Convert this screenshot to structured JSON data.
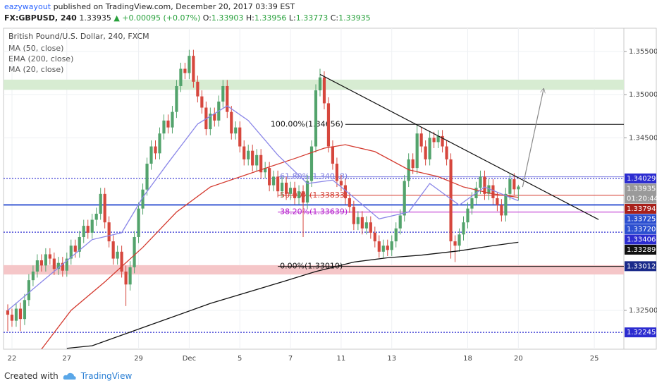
{
  "header": {
    "author": "eazywayout",
    "published": "published on TradingView.com, December 20, 2017 03:39 EST",
    "symbol": "FX:GBPUSD, 240",
    "last": "1.33935",
    "change": "▲ +0.00095 (+0.07%)",
    "ohlc": [
      {
        "key": "O:",
        "value": "1.33903"
      },
      {
        "key": "H:",
        "value": "1.33956"
      },
      {
        "key": "L:",
        "value": "1.33773"
      },
      {
        "key": "C:",
        "value": "1.33935"
      }
    ]
  },
  "footer": {
    "created": "Created with",
    "brand": "TradingView"
  },
  "chart_data": {
    "type": "candlestick",
    "title": "British Pound/U.S. Dollar, 240, FXCM",
    "up_color": "#53a36c",
    "down_color": "#d6473d",
    "xlim": [
      -1,
      146
    ],
    "ylim": [
      1.3205,
      1.3577
    ],
    "xticks": [
      {
        "value": 1,
        "label": "22"
      },
      {
        "value": 14,
        "label": "27"
      },
      {
        "value": 31,
        "label": "29"
      },
      {
        "value": 43,
        "label": "Dec"
      },
      {
        "value": 55,
        "label": "5"
      },
      {
        "value": 67,
        "label": "7"
      },
      {
        "value": 79,
        "label": "11"
      },
      {
        "value": 91,
        "label": "13"
      },
      {
        "value": 109,
        "label": "18"
      },
      {
        "value": 121,
        "label": "20"
      },
      {
        "value": 139,
        "label": "25"
      }
    ],
    "yticks": [
      {
        "value": 1.355,
        "label": "1.35500"
      },
      {
        "value": 1.35,
        "label": "1.35000"
      },
      {
        "value": 1.345,
        "label": "1.34500"
      },
      {
        "value": 1.325,
        "label": "1.32500"
      }
    ],
    "grid": true,
    "open": [
      1.325,
      1.3245,
      1.3238,
      1.3252,
      1.324,
      1.3262,
      1.3285,
      1.3295,
      1.3308,
      1.3302,
      1.3315,
      1.331,
      1.3298,
      1.3305,
      1.3296,
      1.331,
      1.3325,
      1.3318,
      1.3335,
      1.3348,
      1.334,
      1.3355,
      1.3362,
      1.3385,
      1.3352,
      1.333,
      1.331,
      1.3318,
      1.3295,
      1.328,
      1.33,
      1.3335,
      1.3368,
      1.339,
      1.342,
      1.344,
      1.3432,
      1.3455,
      1.347,
      1.3462,
      1.348,
      1.351,
      1.353,
      1.3525,
      1.3545,
      1.3515,
      1.3498,
      1.3485,
      1.346,
      1.3478,
      1.347,
      1.3492,
      1.351,
      1.348,
      1.3455,
      1.3462,
      1.344,
      1.3425,
      1.3435,
      1.3418,
      1.343,
      1.341,
      1.3415,
      1.3395,
      1.3405,
      1.3388,
      1.3398,
      1.3385,
      1.3392,
      1.338,
      1.3388,
      1.3375,
      1.34,
      1.344,
      1.3505,
      1.352,
      1.349,
      1.344,
      1.342,
      1.34,
      1.3395,
      1.338,
      1.337,
      1.335,
      1.3358,
      1.3345,
      1.3352,
      1.334,
      1.333,
      1.3318,
      1.3325,
      1.332,
      1.333,
      1.3345,
      1.336,
      1.34,
      1.3425,
      1.3415,
      1.3455,
      1.344,
      1.3425,
      1.345,
      1.3445,
      1.3452,
      1.344,
      1.3425,
      1.333,
      1.3325,
      1.3338,
      1.3352,
      1.3368,
      1.338,
      1.3392,
      1.3405,
      1.3385,
      1.3395,
      1.338,
      1.3372,
      1.336,
      1.3385,
      1.3402,
      1.33903
    ],
    "high": [
      1.3257,
      1.3252,
      1.3259,
      1.3259,
      1.3269,
      1.3292,
      1.3302,
      1.3315,
      1.3315,
      1.3322,
      1.3322,
      1.3317,
      1.3312,
      1.3312,
      1.3317,
      1.3332,
      1.3332,
      1.3342,
      1.3355,
      1.3355,
      1.3362,
      1.3369,
      1.3392,
      1.3392,
      1.3359,
      1.3337,
      1.3325,
      1.3325,
      1.3302,
      1.3307,
      1.3342,
      1.3375,
      1.3397,
      1.3427,
      1.3447,
      1.3447,
      1.3462,
      1.3477,
      1.3477,
      1.3487,
      1.3517,
      1.3537,
      1.3537,
      1.3552,
      1.3552,
      1.3522,
      1.3505,
      1.3492,
      1.3485,
      1.3485,
      1.3499,
      1.3517,
      1.3517,
      1.3487,
      1.3469,
      1.3469,
      1.3447,
      1.3442,
      1.3442,
      1.3437,
      1.3437,
      1.3422,
      1.3422,
      1.3412,
      1.3412,
      1.3405,
      1.3405,
      1.3399,
      1.3399,
      1.3395,
      1.3395,
      1.3407,
      1.3447,
      1.3512,
      1.353,
      1.3527,
      1.3497,
      1.3447,
      1.3427,
      1.3407,
      1.3402,
      1.3387,
      1.3377,
      1.3365,
      1.3365,
      1.3359,
      1.3359,
      1.3347,
      1.3337,
      1.3332,
      1.3332,
      1.3337,
      1.3352,
      1.3367,
      1.3407,
      1.3432,
      1.3432,
      1.3465,
      1.3462,
      1.3447,
      1.3457,
      1.3457,
      1.3459,
      1.3459,
      1.3447,
      1.3432,
      1.3337,
      1.3345,
      1.3359,
      1.3375,
      1.3387,
      1.3399,
      1.3412,
      1.3412,
      1.3402,
      1.3402,
      1.3387,
      1.3379,
      1.3392,
      1.3409,
      1.3409,
      1.33956
    ],
    "low": [
      1.3226,
      1.3231,
      1.3231,
      1.3226,
      1.3233,
      1.3255,
      1.3278,
      1.3288,
      1.3295,
      1.3295,
      1.3303,
      1.3291,
      1.3291,
      1.3289,
      1.3289,
      1.3303,
      1.3311,
      1.3311,
      1.3328,
      1.3333,
      1.3333,
      1.3348,
      1.3355,
      1.3345,
      1.3323,
      1.3303,
      1.3303,
      1.3288,
      1.3255,
      1.3273,
      1.3293,
      1.3328,
      1.3361,
      1.3383,
      1.3413,
      1.3425,
      1.3425,
      1.3448,
      1.3455,
      1.3455,
      1.3473,
      1.3503,
      1.3518,
      1.3518,
      1.3508,
      1.3491,
      1.3478,
      1.3453,
      1.3453,
      1.3463,
      1.3463,
      1.3485,
      1.3473,
      1.3448,
      1.3448,
      1.3433,
      1.3418,
      1.3418,
      1.3411,
      1.3411,
      1.3403,
      1.3403,
      1.3388,
      1.3388,
      1.3381,
      1.3381,
      1.3378,
      1.3378,
      1.3373,
      1.3373,
      1.3335,
      1.3368,
      1.3393,
      1.3433,
      1.3498,
      1.3483,
      1.3433,
      1.3413,
      1.3393,
      1.3388,
      1.3373,
      1.3363,
      1.3343,
      1.3343,
      1.3338,
      1.3338,
      1.3333,
      1.3323,
      1.3311,
      1.3311,
      1.3313,
      1.3313,
      1.3323,
      1.3338,
      1.3353,
      1.3393,
      1.3408,
      1.3408,
      1.3433,
      1.3418,
      1.3418,
      1.3438,
      1.3438,
      1.3433,
      1.3418,
      1.331,
      1.3306,
      1.3318,
      1.3331,
      1.3345,
      1.3361,
      1.3373,
      1.3385,
      1.3378,
      1.3378,
      1.3373,
      1.3365,
      1.3353,
      1.3353,
      1.3378,
      1.3383,
      1.33773
    ],
    "close": [
      1.3245,
      1.3238,
      1.3252,
      1.324,
      1.3262,
      1.3285,
      1.3295,
      1.3308,
      1.3302,
      1.3315,
      1.331,
      1.3298,
      1.3305,
      1.3296,
      1.331,
      1.3325,
      1.3318,
      1.3335,
      1.3348,
      1.334,
      1.3355,
      1.3362,
      1.3385,
      1.3352,
      1.333,
      1.331,
      1.3318,
      1.3295,
      1.328,
      1.33,
      1.3335,
      1.3368,
      1.339,
      1.342,
      1.344,
      1.3432,
      1.3455,
      1.347,
      1.3462,
      1.348,
      1.351,
      1.353,
      1.3525,
      1.3545,
      1.3515,
      1.3498,
      1.3485,
      1.346,
      1.3478,
      1.347,
      1.3492,
      1.351,
      1.348,
      1.3455,
      1.3462,
      1.344,
      1.3425,
      1.3435,
      1.3418,
      1.343,
      1.341,
      1.3415,
      1.3395,
      1.3405,
      1.3388,
      1.3398,
      1.3385,
      1.3392,
      1.338,
      1.3388,
      1.3375,
      1.34,
      1.344,
      1.3505,
      1.352,
      1.349,
      1.344,
      1.342,
      1.34,
      1.3395,
      1.338,
      1.337,
      1.335,
      1.3358,
      1.3345,
      1.3352,
      1.334,
      1.333,
      1.3318,
      1.3325,
      1.332,
      1.333,
      1.3345,
      1.336,
      1.34,
      1.3425,
      1.3415,
      1.3455,
      1.344,
      1.3425,
      1.345,
      1.3445,
      1.3452,
      1.344,
      1.3425,
      1.333,
      1.3325,
      1.3338,
      1.3352,
      1.3368,
      1.338,
      1.3392,
      1.3405,
      1.3385,
      1.3395,
      1.338,
      1.3372,
      1.336,
      1.3385,
      1.3402,
      1.33903,
      1.33935
    ],
    "lines": [
      {
        "name": "MA (50, close)",
        "color": "#d43a2f",
        "x": [
          8,
          15,
          23,
          32,
          40,
          48,
          60,
          68,
          75,
          80,
          87,
          95,
          102,
          108,
          115,
          121
        ],
        "values": [
          1.3205,
          1.325,
          1.3283,
          1.3323,
          1.3364,
          1.3393,
          1.3413,
          1.3426,
          1.3438,
          1.3442,
          1.3434,
          1.3413,
          1.3405,
          1.3393,
          1.3385,
          1.3381
        ]
      },
      {
        "name": "EMA (200, close)",
        "color": "#111111",
        "x": [
          14,
          20,
          32,
          48,
          65,
          73,
          82,
          90,
          98,
          107,
          115,
          121
        ],
        "values": [
          1.3206,
          1.3209,
          1.323,
          1.3258,
          1.3283,
          1.3295,
          1.3306,
          1.3311,
          1.3314,
          1.3319,
          1.3325,
          1.3329
        ]
      },
      {
        "name": "MA (20, close)",
        "color": "#8a86e8",
        "x": [
          0,
          8,
          20,
          27,
          32,
          38,
          45,
          52,
          57,
          64,
          71,
          77,
          82,
          88,
          95,
          100,
          107,
          113,
          121
        ],
        "values": [
          1.325,
          1.3283,
          1.3332,
          1.334,
          1.3381,
          1.3421,
          1.3466,
          1.3487,
          1.347,
          1.343,
          1.3397,
          1.3401,
          1.3381,
          1.3356,
          1.3364,
          1.3397,
          1.3372,
          1.3393,
          1.3377
        ]
      }
    ],
    "zones": [
      {
        "from": 1.3506,
        "to": 1.3517,
        "color": "#d7ecd2"
      },
      {
        "from": 1.3292,
        "to": 1.3302,
        "color": "#f5c6c8"
      }
    ],
    "levels": [
      {
        "value": 1.34029,
        "style": "dotted",
        "color": "#2c2cd0"
      },
      {
        "value": 1.33725,
        "style": "solid",
        "color": "#2c4fd0"
      },
      {
        "value": 1.3372,
        "style": "solid",
        "color": "#2c4fd0"
      },
      {
        "value": 1.33406,
        "style": "dotted",
        "color": "#2c2cd0"
      },
      {
        "value": 1.32245,
        "style": "dotted",
        "color": "#2c2cd0"
      }
    ],
    "fib": [
      {
        "value": 1.34656,
        "label": "100.00%(1.34656)",
        "color": "#111111",
        "x_start": 80
      },
      {
        "value": 1.34048,
        "label": "61.80%(1.34048)",
        "color": "#7b7be0",
        "x_start": 64
      },
      {
        "value": 1.33833,
        "label": "50.00%(1.33833)",
        "color": "#d43a2f",
        "x_start": 64
      },
      {
        "value": 1.33639,
        "label": "38.20%(1.33639)",
        "color": "#b51ccc",
        "x_start": 64
      },
      {
        "value": 1.3301,
        "label": "0.00%(1.33010)",
        "color": "#111111",
        "x_start": 64
      }
    ],
    "trendlines": [
      {
        "x": [
          74,
          140
        ],
        "values": [
          1.35235,
          1.33553
        ],
        "color": "#111111",
        "arrow": false
      },
      {
        "x": [
          122,
          127
        ],
        "values": [
          1.33929,
          1.35071
        ],
        "color": "#8a8a8a",
        "arrow": true
      }
    ],
    "price_labels": [
      {
        "value": 1.34029,
        "label": "1.34029",
        "color": "#2c2cd0"
      },
      {
        "value": 1.33935,
        "label": "1.33935",
        "color": "#9a9a9a",
        "countdown": "01:20:44"
      },
      {
        "value": 1.33794,
        "label": "1.33794",
        "color": "#a8201a"
      },
      {
        "value": 1.33725,
        "label": "1.33725",
        "color": "#2c4fd0"
      },
      {
        "value": 1.3372,
        "label": "1.33720",
        "color": "#2c4fd0"
      },
      {
        "value": 1.33406,
        "label": "1.33406",
        "color": "#2c2cd0"
      },
      {
        "value": 1.33289,
        "label": "1.33289",
        "color": "#111111"
      },
      {
        "value": 1.33012,
        "label": "1.33012",
        "color": "#1a2a8a"
      },
      {
        "value": 1.32245,
        "label": "1.32245",
        "color": "#2c2cd0"
      }
    ]
  }
}
